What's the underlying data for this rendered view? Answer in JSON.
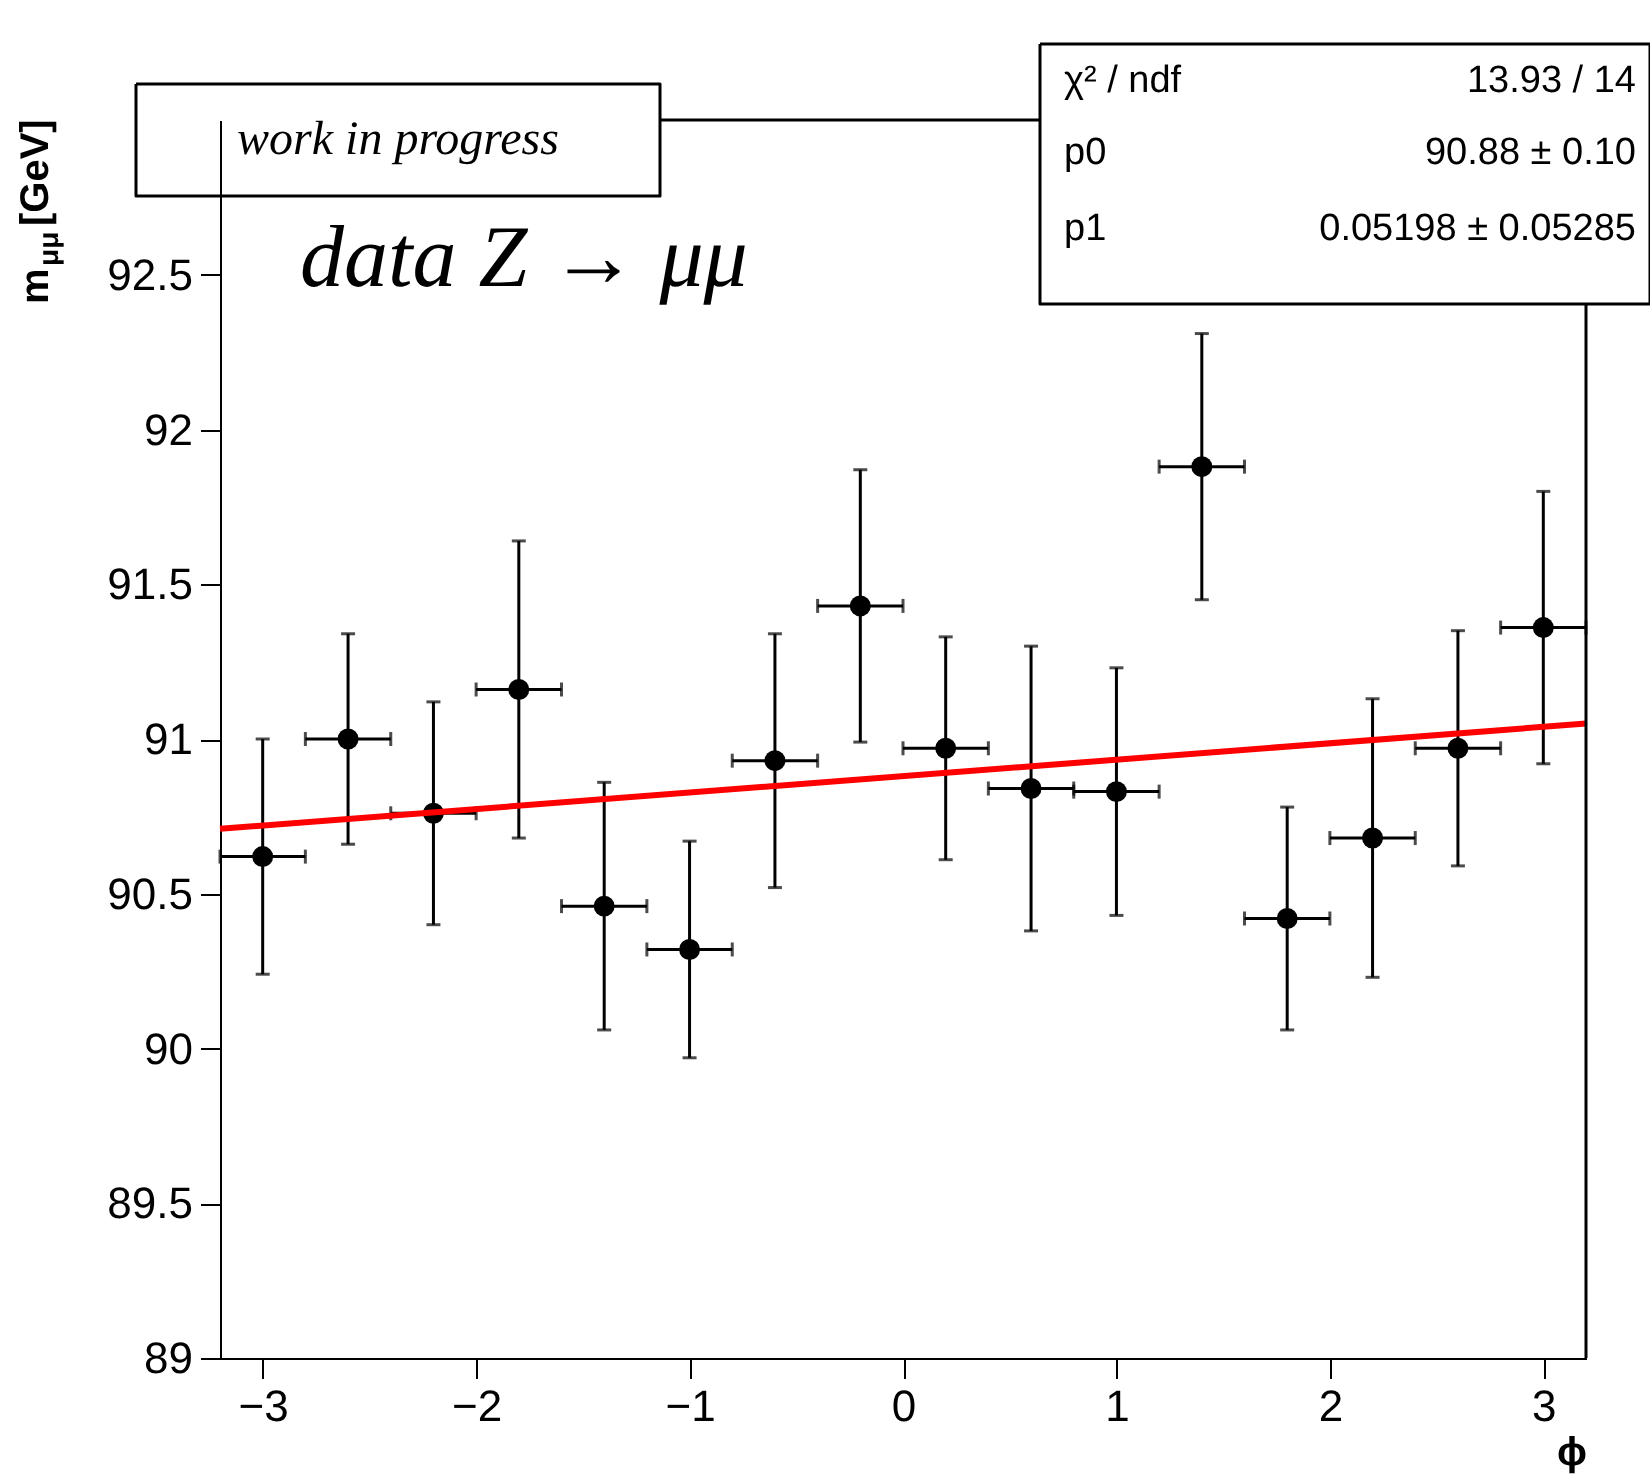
{
  "chart_data": {
    "type": "scatter",
    "xlabel": "ϕ",
    "ylabel": "m$_{μμ}$[GeV]",
    "xlim": [
      -3.2,
      3.2
    ],
    "ylim": [
      89,
      93
    ],
    "xticks": [
      -3,
      -2,
      -1,
      0,
      1,
      2,
      3
    ],
    "yticks": [
      89,
      89.5,
      90,
      90.5,
      91,
      91.5,
      92,
      92.5
    ],
    "grid": false,
    "legend": false,
    "annotations": [
      "work in progress",
      "data Z → μμ",
      "χ² / ndf",
      "13.93 / 14",
      "p0",
      "90.88 ± 0.10",
      "p1",
      "0.05198 ± 0.05285"
    ],
    "series": [
      {
        "marker": "circle",
        "color": "#000000",
        "x": [
          -3.0,
          -2.6,
          -2.2,
          -1.8,
          -1.4,
          -1.0,
          -0.6,
          -0.2,
          0.2,
          0.6,
          1.0,
          1.4,
          1.8,
          2.2,
          2.6,
          3.0
        ],
        "values": [
          90.62,
          91.0,
          90.76,
          91.16,
          90.46,
          90.32,
          90.93,
          91.43,
          90.97,
          90.84,
          90.83,
          91.88,
          90.42,
          90.68,
          90.97,
          91.36
        ],
        "errors": [
          0.38,
          0.34,
          0.36,
          0.48,
          0.4,
          0.35,
          0.41,
          0.44,
          0.36,
          0.46,
          0.4,
          0.43,
          0.36,
          0.45,
          0.38,
          0.44
        ],
        "xerrors": [
          0.2,
          0.2,
          0.2,
          0.2,
          0.2,
          0.2,
          0.2,
          0.2,
          0.2,
          0.2,
          0.2,
          0.2,
          0.2,
          0.2,
          0.2,
          0.2
        ]
      },
      {
        "type": "line",
        "color": "#ff0000",
        "x": [
          -3.2,
          3.2
        ],
        "values": [
          90.71,
          91.05
        ]
      }
    ]
  }
}
